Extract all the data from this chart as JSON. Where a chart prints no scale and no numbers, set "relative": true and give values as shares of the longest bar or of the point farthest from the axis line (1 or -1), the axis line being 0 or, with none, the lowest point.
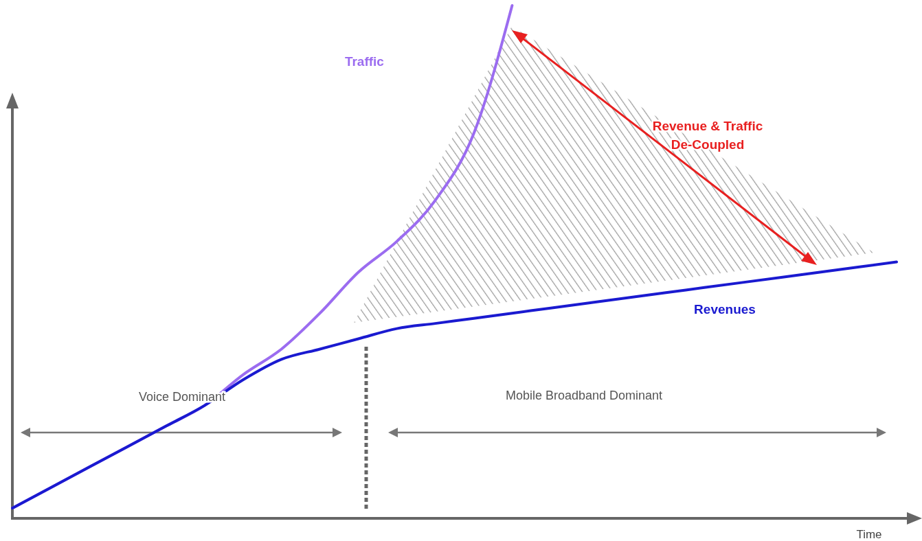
{
  "chart_data": {
    "type": "line",
    "relative": true,
    "xlabel": "Time",
    "categories": [
      null,
      null,
      null,
      null,
      null,
      null,
      null,
      null,
      null,
      null,
      null,
      null,
      null,
      null,
      null,
      null,
      null,
      null,
      null,
      null,
      null,
      null,
      null,
      null
    ],
    "series": [
      {
        "name": "Traffic",
        "color": "#9b6cf0",
        "values": [
          0.02,
          0.06,
          0.1,
          0.14,
          0.18,
          0.22,
          0.28,
          0.33,
          0.4,
          0.48,
          0.54,
          0.62,
          0.75,
          1.0,
          null,
          null,
          null,
          null,
          null,
          null,
          null,
          null,
          null,
          null
        ]
      },
      {
        "name": "Revenues",
        "color": "#1a1ad0",
        "values": [
          0.02,
          0.06,
          0.1,
          0.14,
          0.18,
          0.22,
          0.27,
          0.31,
          0.33,
          0.35,
          0.37,
          0.38,
          0.39,
          0.4,
          0.41,
          0.42,
          0.43,
          0.44,
          0.45,
          0.46,
          0.47,
          0.48,
          0.49,
          0.5
        ]
      }
    ],
    "annotations": [
      "Voice Dominant",
      "Mobile Broadband Dominant",
      "Revenue & Traffic\nDe-Coupled"
    ]
  }
}
